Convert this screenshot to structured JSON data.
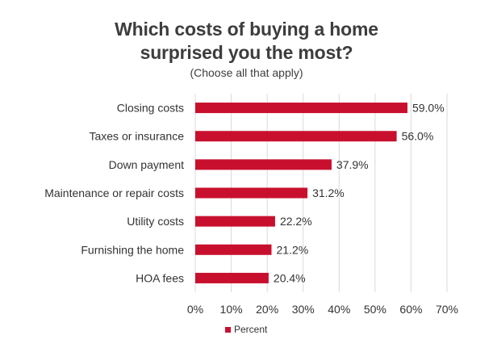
{
  "chart_data": {
    "type": "bar",
    "orientation": "horizontal",
    "title_line1": "Which costs of buying a home",
    "title_line2": "surprised you the most?",
    "subtitle": "(Choose all that apply)",
    "categories": [
      "Closing costs",
      "Taxes or insurance",
      "Down payment",
      "Maintenance or repair costs",
      "Utility costs",
      "Furnishing the home",
      "HOA fees"
    ],
    "series": [
      {
        "name": "Percent",
        "values": [
          59.0,
          56.0,
          37.9,
          31.2,
          22.2,
          21.2,
          20.4
        ]
      }
    ],
    "value_labels": [
      "59.0%",
      "56.0%",
      "37.9%",
      "31.2%",
      "22.2%",
      "21.2%",
      "20.4%"
    ],
    "x_ticks": [
      "0%",
      "10%",
      "20%",
      "30%",
      "40%",
      "50%",
      "60%",
      "70%"
    ],
    "xlim": [
      0,
      70
    ],
    "grid": "vertical",
    "legend_position": "bottom",
    "bar_color": "#c8102e",
    "grid_color": "#d9d9d9"
  }
}
